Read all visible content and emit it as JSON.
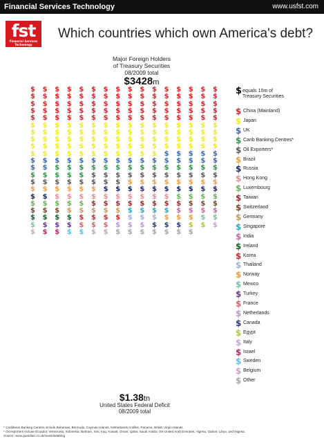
{
  "header": {
    "brand": "Financial Services Technology",
    "url": "www.usfst.com",
    "logo_text": "fst",
    "logo_subtext": "Financial Services Technology"
  },
  "headline": "Which countries which own America's debt?",
  "holders_caption": [
    "Major Foreign Holders",
    "of Treasury Securities",
    "08/2009 total"
  ],
  "holders_total": "$3428",
  "holders_total_unit": "m",
  "legend_symbol": "$",
  "legend_note": [
    "equals 10m of",
    "Treasury Securities"
  ],
  "deficit_total": "$1.38",
  "deficit_total_unit": "tn",
  "deficit_caption": [
    "United States Federal Deficit",
    "08/2009 total"
  ],
  "footnotes": [
    "* Caribbean Banking Centers include Bahamas, Bermuda,   Cayman Islands, Netherlands Antilles, Panama, British Virgin Islands",
    "* Oil exporters include Ecuador, Venezuela, Indonesia, Bahrain, Iran, Iraq, Kuwait, Oman, Qatar, Saudi Arabia, the United Arab Emirates, Algeria, Gabon, Libya, and Nigeria.",
    "Source: www.guardian.co.uk/news/datablog"
  ],
  "chart_data": {
    "type": "pictogram",
    "unit_value": 10,
    "unit_label": "equals 10m of Treasury Securities",
    "series": [
      {
        "name": "China (Mainland)",
        "units": 80,
        "color": "#e2222b"
      },
      {
        "name": "Japan",
        "units": 75,
        "color": "#f2ec1e"
      },
      {
        "name": "UK",
        "units": 23,
        "color": "#3d6bb3"
      },
      {
        "name": "Carib Banking Centres*",
        "units": 19,
        "color": "#2b9a48"
      },
      {
        "name": "Oil Exporters*",
        "units": 19,
        "color": "#5b5b5b"
      },
      {
        "name": "Brazil",
        "units": 14,
        "color": "#f0a040"
      },
      {
        "name": "Russia",
        "units": 12,
        "color": "#1b2a6b"
      },
      {
        "name": "Hong Kong",
        "units": 10,
        "color": "#e88d95"
      },
      {
        "name": "Luxembourg",
        "units": 9,
        "color": "#6cb45b"
      },
      {
        "name": "Taiwan",
        "units": 8,
        "color": "#a32b2b"
      },
      {
        "name": "Switzerland",
        "units": 6,
        "color": "#7a4a28"
      },
      {
        "name": "Germany",
        "units": 5,
        "color": "#c59860"
      },
      {
        "name": "Singapore",
        "units": 4,
        "color": "#2ba8c2"
      },
      {
        "name": "India",
        "units": 4,
        "color": "#c56aaa"
      },
      {
        "name": "Ireland",
        "units": 4,
        "color": "#18622a"
      },
      {
        "name": "Korea",
        "units": 4,
        "color": "#d2282b"
      },
      {
        "name": "Thailand",
        "units": 3,
        "color": "#a0b4db"
      },
      {
        "name": "Norway",
        "units": 3,
        "color": "#f09a3a"
      },
      {
        "name": "Mexico",
        "units": 3,
        "color": "#78c2a2"
      },
      {
        "name": "Turkey",
        "units": 3,
        "color": "#6d3b8a"
      },
      {
        "name": "France",
        "units": 3,
        "color": "#e06070"
      },
      {
        "name": "Netherlands",
        "units": 3,
        "color": "#b69ad2"
      },
      {
        "name": "Canada",
        "units": 3,
        "color": "#2a3f7a"
      },
      {
        "name": "Egypt",
        "units": 2,
        "color": "#b7c23a"
      },
      {
        "name": "Italy",
        "units": 2,
        "color": "#c6a6d6"
      },
      {
        "name": "Israel",
        "units": 2,
        "color": "#b42a6a"
      },
      {
        "name": "Sweden",
        "units": 2,
        "color": "#5bc2ea"
      },
      {
        "name": "Belgium",
        "units": 2,
        "color": "#c9a2c4"
      },
      {
        "name": "Other",
        "units": 7,
        "color": "#a8a8a8"
      }
    ]
  }
}
